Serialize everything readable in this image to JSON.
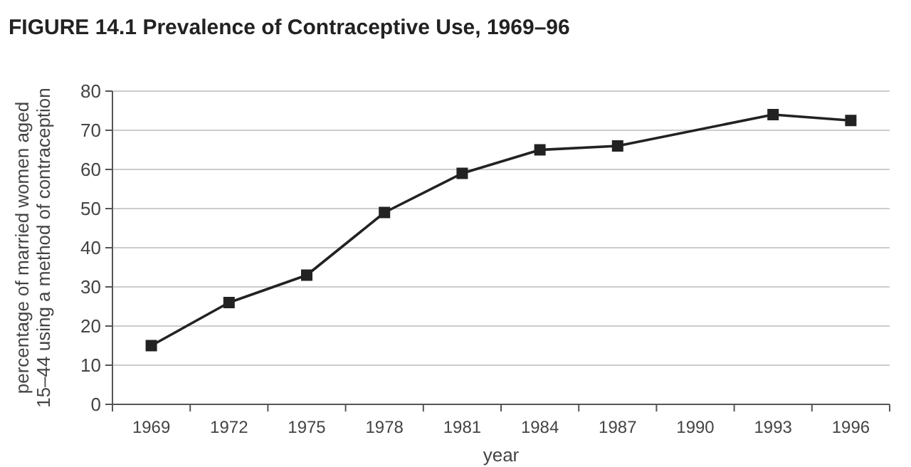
{
  "chart_data": {
    "type": "line",
    "title": "FIGURE 14.1 Prevalence of Contraceptive Use, 1969–96",
    "xlabel": "year",
    "ylabel": "percentage of married women aged 15–44 using a method of contraception",
    "categories": [
      "1969",
      "1972",
      "1975",
      "1978",
      "1981",
      "1984",
      "1987",
      "1990",
      "1993",
      "1996"
    ],
    "series": [
      {
        "color": "#222222",
        "values": [
          15,
          26,
          33,
          49,
          59,
          65,
          66,
          null,
          74,
          72.5
        ]
      }
    ],
    "ylim": [
      0,
      80
    ],
    "yticks": [
      0,
      10,
      20,
      30,
      40,
      50,
      60,
      70,
      80
    ],
    "grid": "y",
    "marker": "square",
    "line_style": "solid"
  }
}
